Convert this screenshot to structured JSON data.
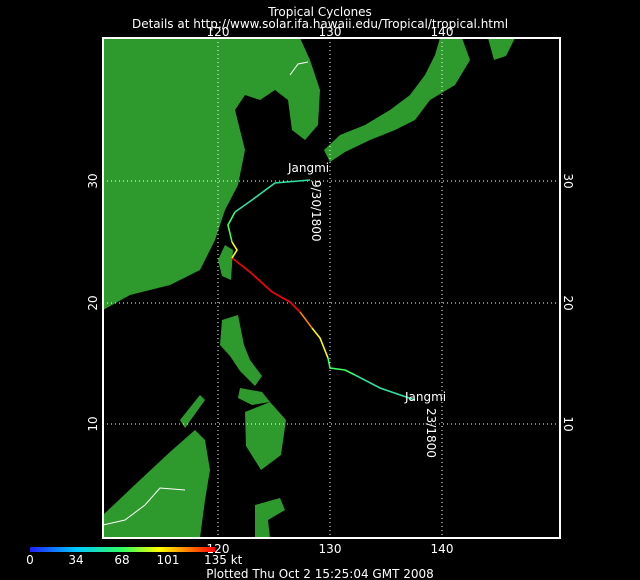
{
  "header": {
    "title": "Tropical Cyclones",
    "subtitle": "Details at http://www.solar.ifa.hawaii.edu/Tropical/tropical.html"
  },
  "map": {
    "lon_labels": [
      "120",
      "130",
      "140"
    ],
    "lat_labels": [
      "30",
      "20",
      "10"
    ],
    "storm_labels": [
      {
        "name": "Jangmi",
        "time": "9/30/1800"
      },
      {
        "name": "Jangmi",
        "time": "23/1800"
      }
    ]
  },
  "colorbar": {
    "labels": [
      "0",
      "34",
      "68",
      "101",
      "135 kt"
    ]
  },
  "footer": "Plotted Thu Oct 2 15:25:04 GMT 2008"
}
